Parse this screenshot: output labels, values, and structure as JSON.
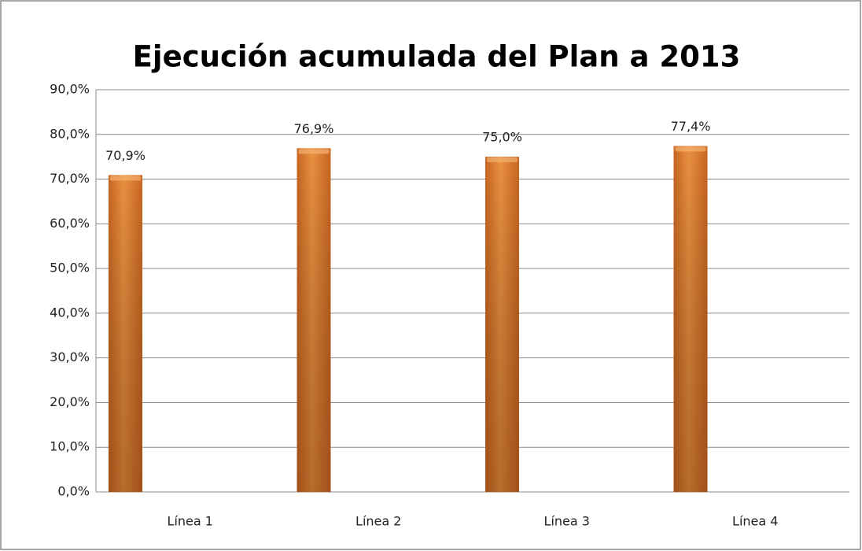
{
  "chart_data": {
    "type": "bar",
    "title": "Ejecución acumulada del Plan a 2013",
    "categories": [
      "Línea 1",
      "Línea 2",
      "Línea 3",
      "Línea 4"
    ],
    "values": [
      70.9,
      76.9,
      75.0,
      77.4
    ],
    "value_labels": [
      "70,9%",
      "76,9%",
      "75,0%",
      "77,4%"
    ],
    "color": "#e07b2a",
    "ylim": [
      0,
      90
    ],
    "yticks": [
      {
        "value": 0,
        "label": "0,0%"
      },
      {
        "value": 10,
        "label": "10,0%"
      },
      {
        "value": 20,
        "label": "20,0%"
      },
      {
        "value": 30,
        "label": "30,0%"
      },
      {
        "value": 40,
        "label": "40,0%"
      },
      {
        "value": 50,
        "label": "50,0%"
      },
      {
        "value": 60,
        "label": "60,0%"
      },
      {
        "value": 70,
        "label": "70,0%"
      },
      {
        "value": 80,
        "label": "80,0%"
      },
      {
        "value": 90,
        "label": "90,0%"
      }
    ],
    "grid": true
  }
}
